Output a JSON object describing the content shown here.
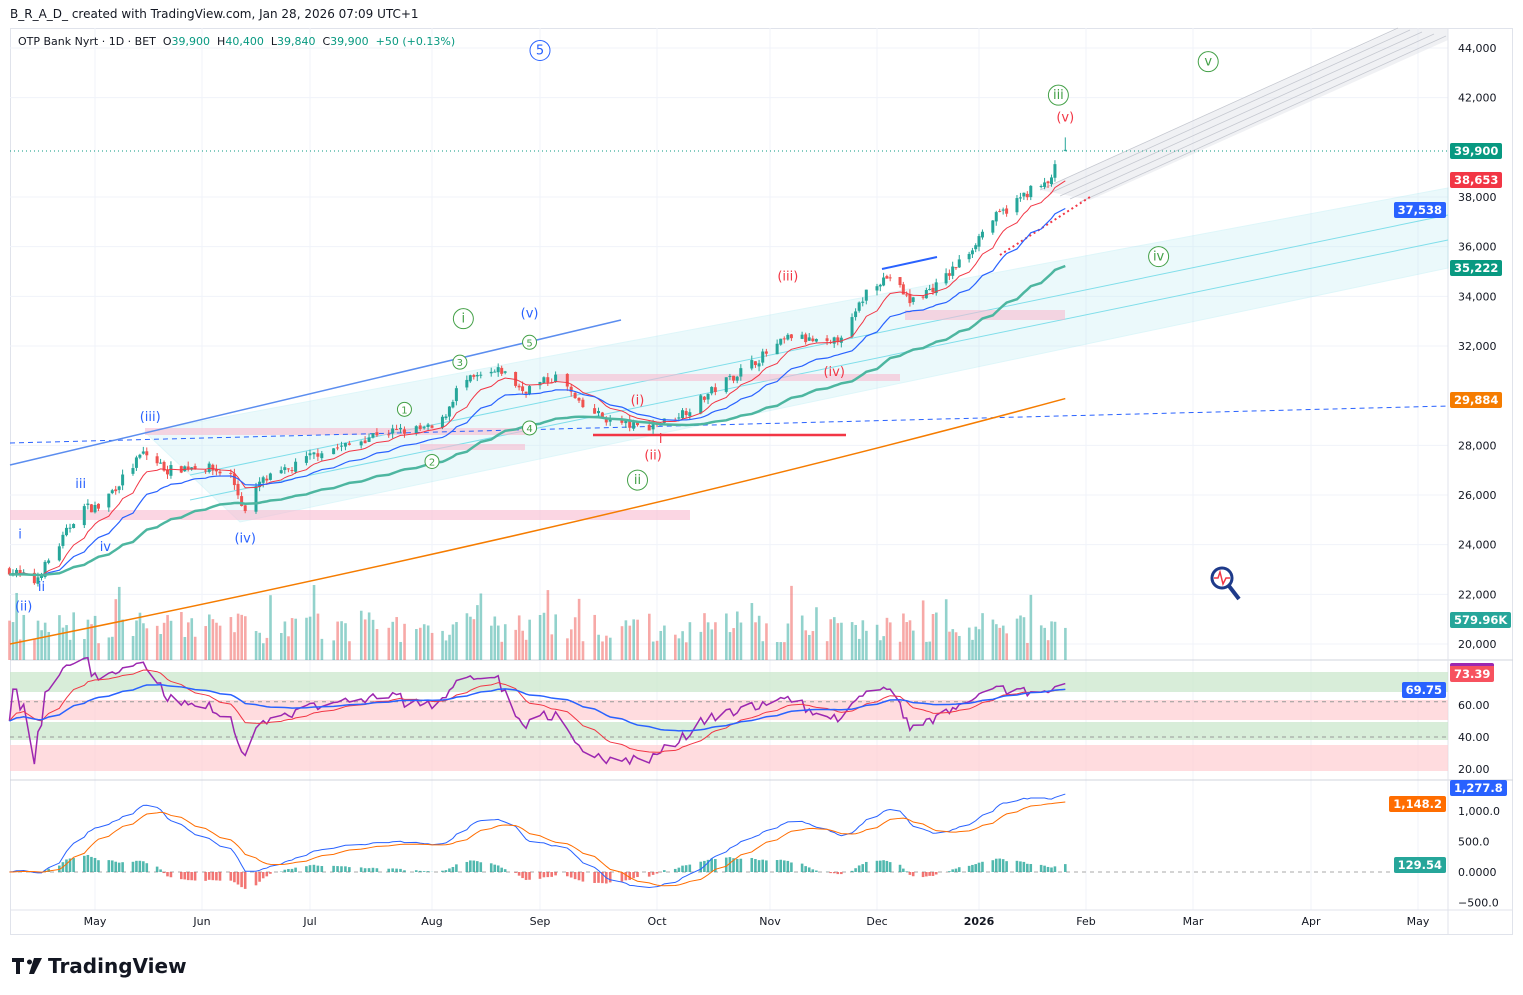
{
  "credit": "B_R_A_D_ created with TradingView.com, Jan 28, 2026 07:09 UTC+1",
  "legend": {
    "symbol": "OTP Bank Nyrt · 1D · BET",
    "o_label": "O",
    "o": "39,900",
    "h_label": "H",
    "h": "40,400",
    "l_label": "L",
    "l": "39,840",
    "c_label": "C",
    "c": "39,900",
    "change": "+50 (+0.13%)"
  },
  "logo": "TradingView",
  "colors": {
    "up": "#26a69a",
    "down": "#ef5350",
    "ma_fast": "#f23645",
    "ma_mid": "#2962ff",
    "ma_slow": "#4db6a0",
    "ma_long": "#f57c00",
    "rsi": "#9c27b0"
  },
  "badges": {
    "last": "39,900",
    "ma_fast": "38,653",
    "ma_mid": "37,538",
    "ma_slow": "35,222",
    "ma_long": "29,884",
    "volume": "579.96K",
    "rsi": "73.39",
    "rsi_ma": "69.75",
    "macd": "1,277.8",
    "signal": "1,148.2",
    "hist": "129.54"
  },
  "chart_data": {
    "type": "candlestick",
    "title": "OTP Bank Nyrt · 1D · BET",
    "price_axis": {
      "ticks": [
        44000,
        42000,
        38000,
        36000,
        34000,
        32000,
        28000,
        26000,
        24000,
        22000,
        20000
      ],
      "tick_labels": [
        "44,000",
        "42,000",
        "38,000",
        "36,000",
        "34,000",
        "32,000",
        "28,000",
        "26,000",
        "24,000",
        "22,000",
        "20,000"
      ],
      "range": [
        19400,
        44800
      ]
    },
    "time_axis": {
      "labels": [
        "May",
        "Jun",
        "Jul",
        "Aug",
        "Sep",
        "Oct",
        "Nov",
        "Dec",
        "2026",
        "Feb",
        "Mar",
        "Apr",
        "May"
      ],
      "dates": [
        "2025-05-01",
        "2025-06-01",
        "2025-07-01",
        "2025-08-01",
        "2025-09-01",
        "2025-10-01",
        "2025-11-01",
        "2025-12-01",
        "2026-01-01",
        "2026-02-01",
        "2026-03-01",
        "2026-04-01",
        "2026-05-01"
      ]
    },
    "close_path": [
      [
        "2025-04-07",
        23000
      ],
      [
        "2025-04-14",
        22500
      ],
      [
        "2025-04-21",
        24000
      ],
      [
        "2025-04-27",
        25500
      ],
      [
        "2025-05-02",
        25500
      ],
      [
        "2025-05-08",
        26500
      ],
      [
        "2025-05-15",
        27700
      ],
      [
        "2025-05-22",
        27000
      ],
      [
        "2025-05-31",
        27200
      ],
      [
        "2025-06-09",
        26800
      ],
      [
        "2025-06-13",
        25300
      ],
      [
        "2025-06-17",
        26500
      ],
      [
        "2025-06-25",
        27000
      ],
      [
        "2025-07-04",
        27800
      ],
      [
        "2025-07-11",
        28000
      ],
      [
        "2025-07-18",
        28500
      ],
      [
        "2025-07-26",
        28600
      ],
      [
        "2025-08-03",
        28700
      ],
      [
        "2025-08-09",
        30500
      ],
      [
        "2025-08-21",
        31000
      ],
      [
        "2025-08-27",
        30200
      ],
      [
        "2025-09-06",
        30800
      ],
      [
        "2025-09-11",
        29600
      ],
      [
        "2025-09-19",
        29000
      ],
      [
        "2025-09-27",
        28700
      ],
      [
        "2025-10-04",
        29000
      ],
      [
        "2025-10-10",
        29500
      ],
      [
        "2025-10-18",
        30400
      ],
      [
        "2025-10-29",
        31500
      ],
      [
        "2025-11-07",
        32400
      ],
      [
        "2025-11-18",
        32000
      ],
      [
        "2025-11-24",
        33000
      ],
      [
        "2025-11-29",
        34500
      ],
      [
        "2025-12-05",
        34800
      ],
      [
        "2025-12-11",
        33800
      ],
      [
        "2025-12-20",
        34500
      ],
      [
        "2025-12-29",
        35800
      ],
      [
        "2026-01-04",
        37000
      ],
      [
        "2026-01-10",
        37600
      ],
      [
        "2026-01-16",
        38300
      ],
      [
        "2026-01-21",
        38500
      ],
      [
        "2026-01-24",
        39500
      ],
      [
        "2026-01-26",
        39900
      ]
    ],
    "last": {
      "open": 39900,
      "high": 40400,
      "low": 39840,
      "close": 39900,
      "volume": "579.96K"
    },
    "moving_averages_last": {
      "fast": 38653,
      "mid": 37538,
      "slow": 35222,
      "long": 29884
    },
    "rsi_axis": {
      "ticks": [
        60,
        40,
        20
      ],
      "tick_labels": [
        "60.00",
        "40.00",
        "20.00"
      ],
      "last": 73.39,
      "ma_last": 69.75
    },
    "macd_axis": {
      "ticks": [
        1000,
        500,
        0,
        -500
      ],
      "tick_labels": [
        "1,000.0",
        "500.0",
        "0.0000",
        "−500.0"
      ],
      "macd_last": 1277.8,
      "signal_last": 1148.2,
      "hist_last": 129.54
    },
    "annotations": [
      {
        "text": "5",
        "date": "2025-09-01",
        "price": 43900,
        "color": "#2962ff",
        "circle": true
      },
      {
        "text": "v",
        "date": "2026-03-05",
        "price": 43450,
        "color": "#43a047",
        "circle": true
      },
      {
        "text": "iii",
        "date": "2026-01-24",
        "price": 42100,
        "color": "#43a047",
        "circle": true
      },
      {
        "text": "(v)",
        "date": "2026-01-26",
        "price": 41200,
        "color": "#f23645"
      },
      {
        "text": "(iii)",
        "date": "2025-11-06",
        "price": 34800,
        "color": "#f23645"
      },
      {
        "text": "iv",
        "date": "2026-02-20",
        "price": 35600,
        "color": "#43a047",
        "circle": true
      },
      {
        "text": "i",
        "date": "2025-08-10",
        "price": 33100,
        "color": "#43a047",
        "circle": true
      },
      {
        "text": "(v)",
        "date": "2025-08-29",
        "price": 33300,
        "color": "#2962ff"
      },
      {
        "text": "5",
        "date": "2025-08-29",
        "price": 32150,
        "color": "#43a047",
        "circle": true,
        "small": true
      },
      {
        "text": "3",
        "date": "2025-08-09",
        "price": 31350,
        "color": "#43a047",
        "circle": true,
        "small": true
      },
      {
        "text": "1",
        "date": "2025-07-25",
        "price": 29450,
        "color": "#43a047",
        "circle": true,
        "small": true
      },
      {
        "text": "4",
        "date": "2025-08-29",
        "price": 28700,
        "color": "#43a047",
        "circle": true,
        "small": true
      },
      {
        "text": "2",
        "date": "2025-08-01",
        "price": 27350,
        "color": "#43a047",
        "circle": true,
        "small": true
      },
      {
        "text": "(iii)",
        "date": "2025-05-17",
        "price": 29150,
        "color": "#2962ff"
      },
      {
        "text": "iii",
        "date": "2025-04-27",
        "price": 26450,
        "color": "#2962ff"
      },
      {
        "text": "iv",
        "date": "2025-05-04",
        "price": 23900,
        "color": "#2962ff"
      },
      {
        "text": "(iv)",
        "date": "2025-06-13",
        "price": 24250,
        "color": "#2962ff"
      },
      {
        "text": "i",
        "date": "2025-04-10",
        "price": 24400,
        "color": "#2962ff"
      },
      {
        "text": "ii",
        "date": "2025-04-16",
        "price": 22300,
        "color": "#2962ff"
      },
      {
        "text": "(ii)",
        "date": "2025-04-11",
        "price": 21500,
        "color": "#2962ff"
      },
      {
        "text": "(i)",
        "date": "2025-09-26",
        "price": 29800,
        "color": "#f23645"
      },
      {
        "text": "(ii)",
        "date": "2025-09-30",
        "price": 27600,
        "color": "#f23645"
      },
      {
        "text": "ii",
        "date": "2025-09-26",
        "price": 26600,
        "color": "#43a047",
        "circle": true
      },
      {
        "text": "(iv)",
        "date": "2025-11-19",
        "price": 30950,
        "color": "#f23645"
      },
      {
        "text": "i",
        "date": "2025-10-02",
        "price": 28100,
        "color": "#f23645"
      }
    ]
  }
}
